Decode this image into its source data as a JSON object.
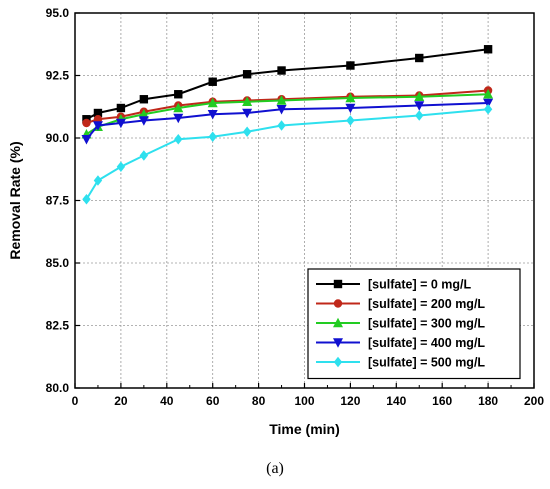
{
  "chart_data": {
    "type": "line",
    "xlabel": "Time (min)",
    "ylabel": "Removal Rate (%)",
    "xlim": [
      0,
      200
    ],
    "ylim": [
      80.0,
      95.0
    ],
    "xticks": [
      "0",
      "20",
      "40",
      "60",
      "80",
      "100",
      "120",
      "140",
      "160",
      "180",
      "200"
    ],
    "yticks": [
      "80.0",
      "82.5",
      "85.0",
      "87.5",
      "90.0",
      "92.5",
      "95.0"
    ],
    "grid": true,
    "legend_position": "bottom-right",
    "x": [
      5,
      10,
      20,
      30,
      45,
      60,
      75,
      90,
      120,
      150,
      180
    ],
    "series": [
      {
        "name": "[sulfate] = 0 mg/L",
        "color": "#000000",
        "marker": "square",
        "values": [
          90.75,
          91.0,
          91.2,
          91.55,
          91.75,
          92.25,
          92.55,
          92.7,
          92.9,
          93.2,
          93.55
        ]
      },
      {
        "name": "[sulfate] = 200 mg/L",
        "color": "#c0281a",
        "marker": "circle",
        "values": [
          90.6,
          90.75,
          90.85,
          91.05,
          91.3,
          91.45,
          91.5,
          91.55,
          91.65,
          91.7,
          91.9
        ]
      },
      {
        "name": "[sulfate] = 300 mg/L",
        "color": "#22cc22",
        "marker": "triangle-up",
        "values": [
          90.15,
          90.45,
          90.75,
          90.95,
          91.2,
          91.4,
          91.45,
          91.5,
          91.6,
          91.65,
          91.75
        ]
      },
      {
        "name": "[sulfate] = 400 mg/L",
        "color": "#1010d0",
        "marker": "triangle-down",
        "values": [
          89.95,
          90.5,
          90.6,
          90.7,
          90.8,
          90.95,
          91.0,
          91.15,
          91.2,
          91.3,
          91.4
        ]
      },
      {
        "name": "[sulfate] = 500 mg/L",
        "color": "#2ee0ee",
        "marker": "diamond",
        "values": [
          87.55,
          88.3,
          88.85,
          89.3,
          89.95,
          90.05,
          90.25,
          90.5,
          90.7,
          90.9,
          91.15
        ]
      }
    ]
  },
  "panel_label": "(a)"
}
